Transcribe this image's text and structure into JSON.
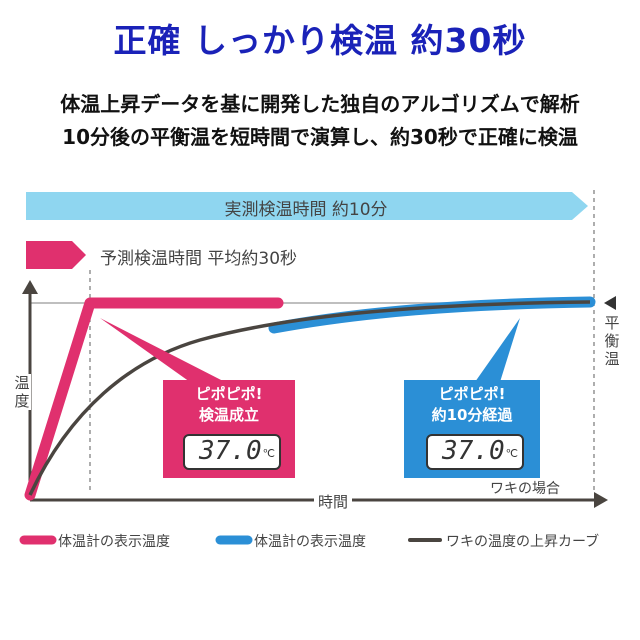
{
  "header": {
    "title": "正確 しっかり検温 約30秒",
    "line1": "体温上昇データを基に開発した独自のアルゴリズムで解析",
    "line2": "10分後の平衡温を短時間で演算し、約30秒で正確に検温"
  },
  "diagram": {
    "measured_bar": "実測検温時間 約10分",
    "predicted_bar": "予測検温時間 平均約30秒",
    "pink_box": {
      "line1": "ピポピポ!",
      "line2": "検温成立",
      "reading": "37.0",
      "unit": "℃"
    },
    "blue_box": {
      "line1": "ピポピポ!",
      "line2": "約10分経過",
      "reading": "37.0",
      "unit": "℃"
    },
    "axis_y": "温度",
    "axis_x": "時間",
    "equilibrium": "平衡温",
    "case_label": "ワキの場合",
    "colors": {
      "pink": "#e0306e",
      "blue": "#2b8fd6",
      "light_blue": "#8fd6f0",
      "curve": "#4a4540"
    }
  },
  "legend": {
    "pink": "体温計の表示温度",
    "blue": "体温計の表示温度",
    "curve": "ワキの温度の上昇カーブ"
  }
}
